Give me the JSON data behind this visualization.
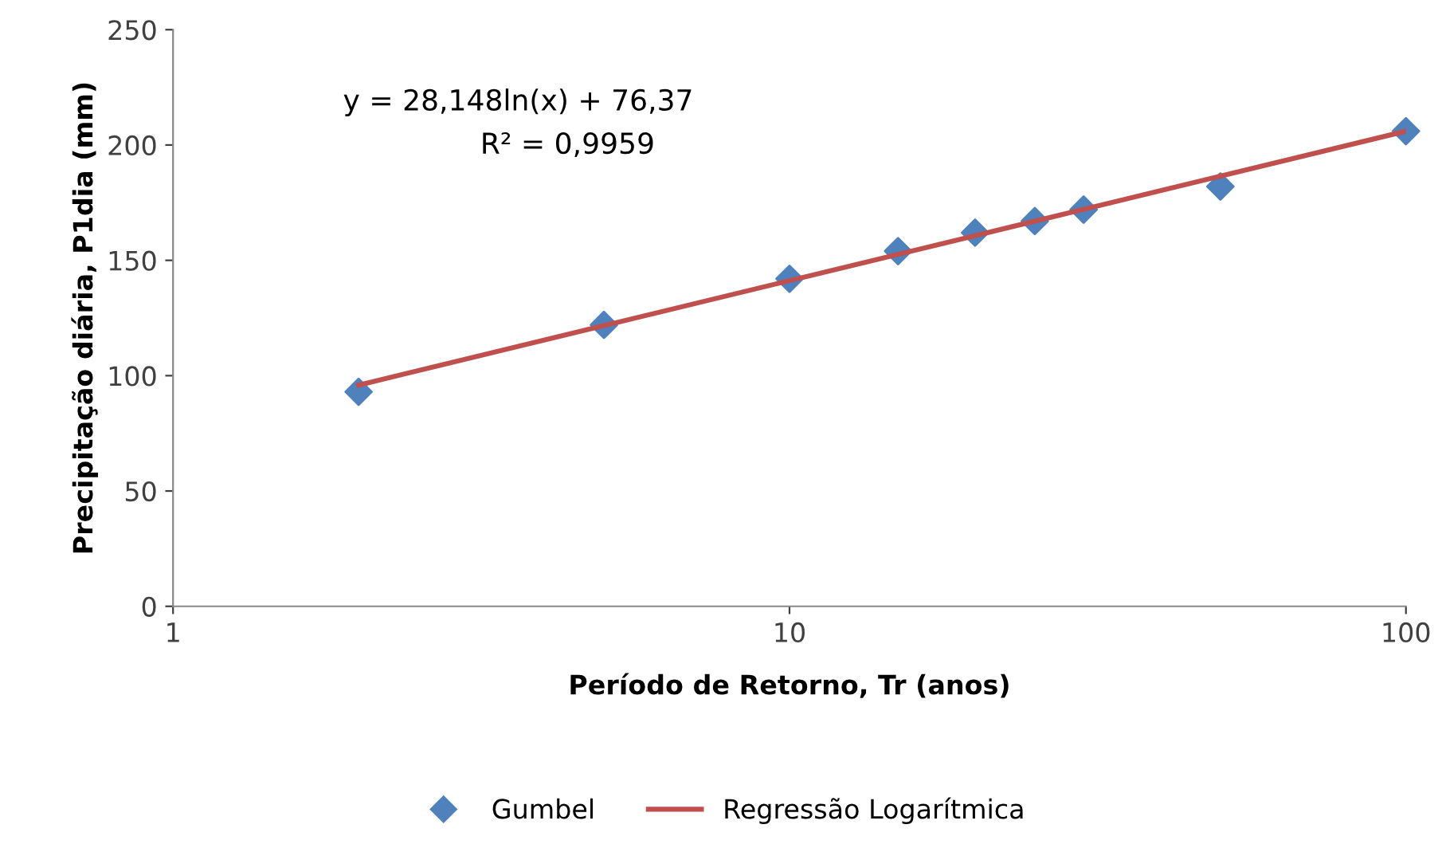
{
  "chart_data": {
    "type": "scatter",
    "xlabel": "Período de Retorno, Tr (anos)",
    "ylabel": "Precipitação diária, P1dia (mm)",
    "series": [
      {
        "name": "Gumbel",
        "color": "#4f81bd",
        "marker": "diamond",
        "x": [
          2,
          5,
          10,
          15,
          20,
          25,
          30,
          50,
          100
        ],
        "values": [
          93,
          122,
          142,
          154,
          162,
          167,
          172,
          182,
          206
        ]
      },
      {
        "name": "Regressão Logarítmica",
        "type": "line",
        "color": "#c0504d",
        "marker": "none",
        "x": [
          2,
          5,
          10,
          20,
          50,
          100
        ],
        "values": [
          95.9,
          121.7,
          141.2,
          160.7,
          186.5,
          206.0
        ]
      }
    ],
    "annotations": [
      "y = 28,148ln(x) + 76,37",
      "R² = 0,9959"
    ],
    "log": "x",
    "xlim": [
      1,
      100
    ],
    "xticks": [
      1,
      10,
      100
    ],
    "ylim": [
      0,
      250
    ],
    "yticks": [
      0,
      50,
      100,
      150,
      200,
      250
    ],
    "grid": false,
    "legend": "bottom"
  }
}
